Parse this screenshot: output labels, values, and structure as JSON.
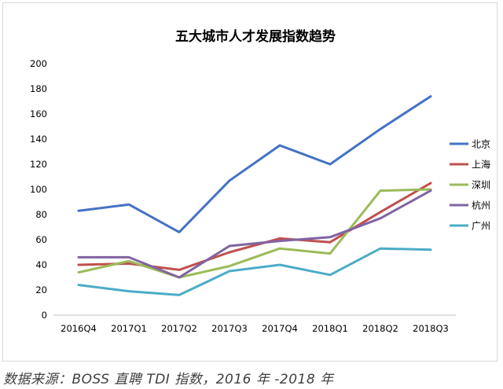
{
  "chart_data": {
    "type": "line",
    "title": "五大城市人才发展指数趋势",
    "xlabel": "",
    "ylabel": "",
    "categories": [
      "2016Q4",
      "2017Q1",
      "2017Q2",
      "2017Q3",
      "2017Q4",
      "2018Q1",
      "2018Q2",
      "2018Q3"
    ],
    "ylim": [
      0,
      200
    ],
    "yticks": [
      0,
      20,
      40,
      60,
      80,
      100,
      120,
      140,
      160,
      180,
      200
    ],
    "grid": false,
    "legend_position": "right",
    "series": [
      {
        "name": "北京",
        "color": "#4472c4",
        "values": [
          83,
          88,
          66,
          107,
          135,
          120,
          148,
          174
        ]
      },
      {
        "name": "上海",
        "color": "#c0504d",
        "values": [
          40,
          41,
          36,
          50,
          61,
          58,
          82,
          105
        ]
      },
      {
        "name": "深圳",
        "color": "#9bbb59",
        "values": [
          34,
          43,
          30,
          39,
          53,
          49,
          99,
          100
        ]
      },
      {
        "name": "杭州",
        "color": "#8064a2",
        "values": [
          46,
          46,
          30,
          55,
          59,
          62,
          77,
          99
        ]
      },
      {
        "name": "广州",
        "color": "#4bacc6",
        "values": [
          24,
          19,
          16,
          35,
          40,
          32,
          53,
          52
        ]
      }
    ]
  },
  "caption": "数据来源：BOSS 直聘 TDI 指数，2016 年 -2018 年"
}
